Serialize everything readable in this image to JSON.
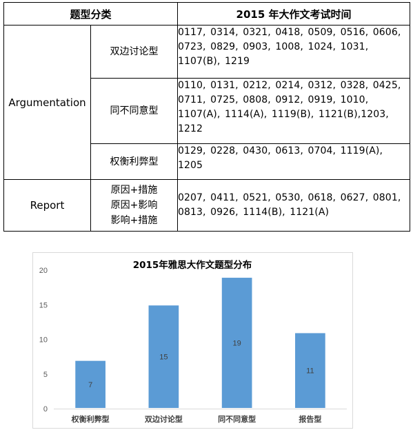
{
  "table": {
    "headers": [
      "题型分类",
      "2015 年大作文考试时间"
    ],
    "rows": [
      {
        "category": "Argumentation",
        "subtypes": [
          {
            "name": "双边讨论型",
            "dates": "0117, 0314, 0321, 0418, 0509, 0516, 0606, 0723, 0829, 0903, 1008, 1024, 1031, 1107(B), 1219"
          },
          {
            "name": "同不同意型",
            "dates": "0110, 0131, 0212, 0214, 0312, 0328, 0425, 0711, 0725, 0808, 0912, 0919, 1010, 1107(A), 1114(A), 1119(B), 1121(B),1203, 1212"
          },
          {
            "name": "权衡利弊型",
            "dates": "0129, 0228, 0430, 0613, 0704, 1119(A), 1205"
          }
        ]
      },
      {
        "category": "Report",
        "subtype_lines": [
          "原因+措施",
          "原因+影响",
          "影响+措施"
        ],
        "dates": "0207, 0411, 0521, 0530, 0618, 0627, 0801, 0813, 0926, 1114(B), 1121(A)"
      }
    ]
  },
  "chart_data": {
    "type": "bar",
    "title": "2015年雅思大作文题型分布",
    "categories": [
      "权衡利弊型",
      "双边讨论型",
      "同不同意型",
      "报告型"
    ],
    "values": [
      7,
      15,
      19,
      11
    ],
    "ylim": [
      0,
      20
    ],
    "yticks": [
      0,
      5,
      10,
      15,
      20
    ],
    "xlabel": "",
    "ylabel": "",
    "bar_color": "#5b9bd5",
    "grid": false,
    "legend": "none"
  }
}
